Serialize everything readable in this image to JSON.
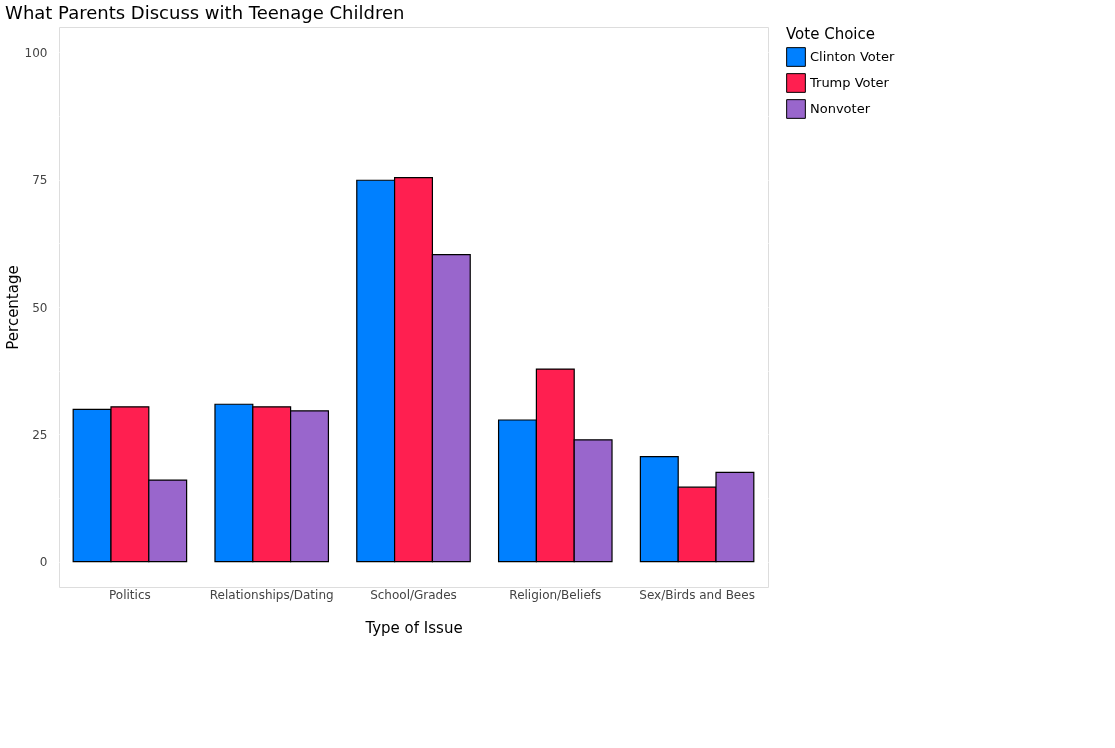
{
  "chart_data": {
    "type": "bar",
    "title": "What Parents Discuss with Teenage Children",
    "xlabel": "Type of Issue",
    "ylabel": "Percentage",
    "legend_title": "Vote Choice",
    "legend": "right",
    "categories": [
      "Politics",
      "Relationships/Dating",
      "School/Grades",
      "Religion/Beliefs",
      "Sex/Birds and Bees"
    ],
    "series": [
      {
        "name": "Clinton Voter",
        "color": "#0080ff",
        "values": [
          29.9,
          30.9,
          74.9,
          27.8,
          20.6
        ]
      },
      {
        "name": "Trump Voter",
        "color": "#ff1f50",
        "values": [
          30.4,
          30.4,
          75.4,
          37.8,
          14.6
        ]
      },
      {
        "name": "Nonvoter",
        "color": "#9966cc",
        "values": [
          16.0,
          29.6,
          60.3,
          23.9,
          17.5
        ]
      }
    ],
    "ylim": [
      -5,
      105
    ],
    "yticks": [
      0,
      {
        "value": 12.5,
        "label": null
      },
      25,
      {
        "value": 37.5,
        "label": null
      },
      50,
      {
        "value": 62.5,
        "label": null
      },
      75,
      {
        "value": 87.5,
        "label": null
      },
      100
    ],
    "grid": "y"
  }
}
